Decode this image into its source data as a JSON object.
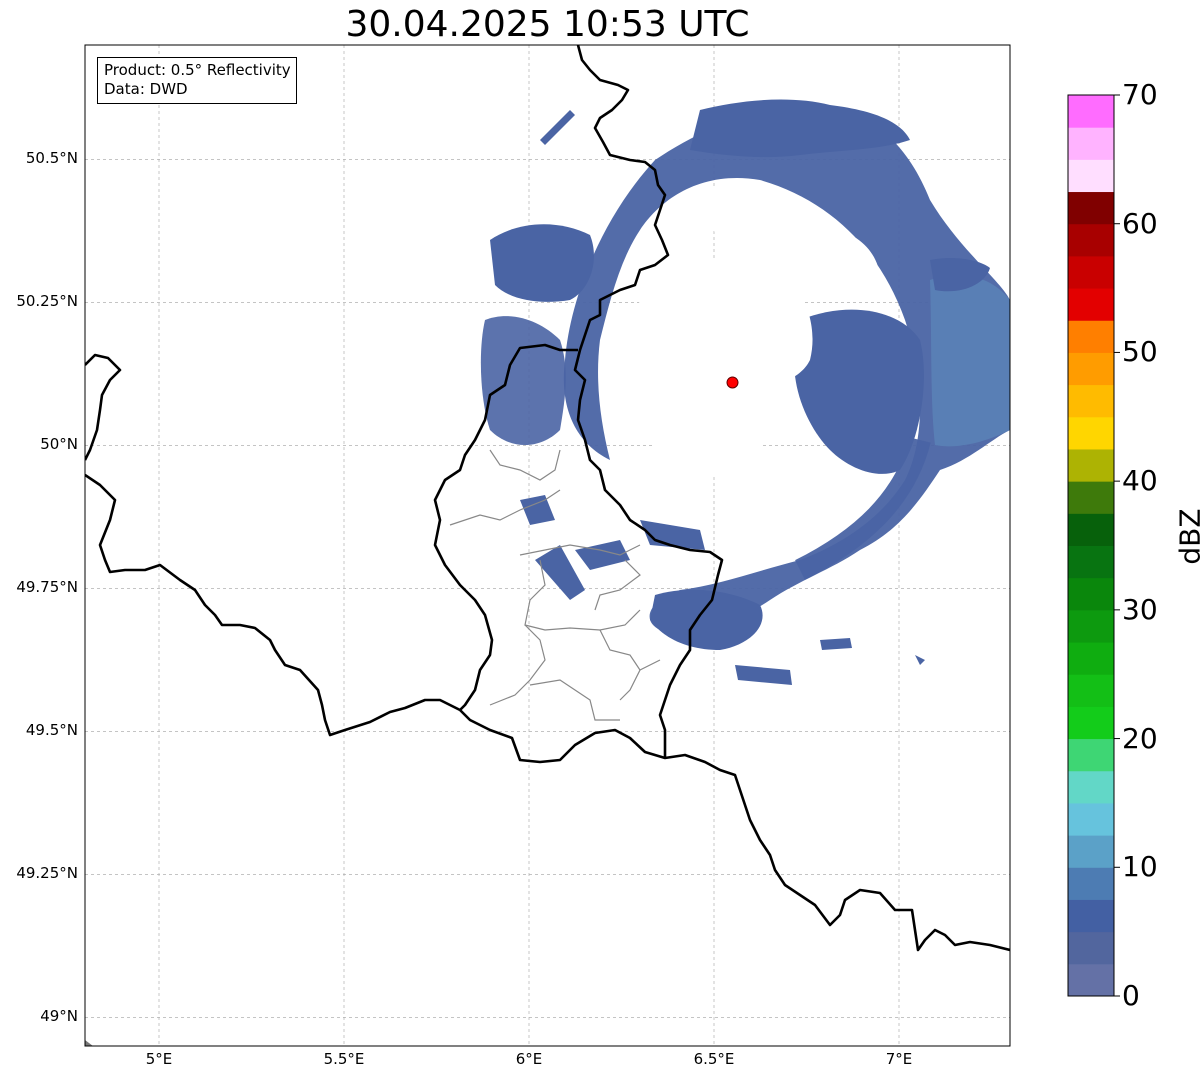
{
  "title": "30.04.2025 10:53 UTC",
  "info_box": {
    "product": "Product: 0.5° Reflectivity",
    "data": "Data: DWD"
  },
  "axes": {
    "lon_ticks": [
      {
        "value": 5.0,
        "label": "5°E"
      },
      {
        "value": 5.5,
        "label": "5.5°E"
      },
      {
        "value": 6.0,
        "label": "6°E"
      },
      {
        "value": 6.5,
        "label": "6.5°E"
      },
      {
        "value": 7.0,
        "label": "7°E"
      }
    ],
    "lat_ticks": [
      {
        "value": 50.5,
        "label": "50.5°N"
      },
      {
        "value": 50.25,
        "label": "50.25°N"
      },
      {
        "value": 50.0,
        "label": "50°N"
      },
      {
        "value": 49.75,
        "label": "49.75°N"
      },
      {
        "value": 49.5,
        "label": "49.5°N"
      },
      {
        "value": 49.25,
        "label": "49.25°N"
      },
      {
        "value": 49.0,
        "label": "49°N"
      }
    ],
    "lon_range": [
      4.8,
      7.3
    ],
    "lat_range": [
      48.95,
      50.7
    ],
    "grid": true
  },
  "radar_site": {
    "lon": 6.55,
    "lat": 50.11,
    "marker_color": "#ff0000"
  },
  "colorbar": {
    "label": "dBZ",
    "min": 0,
    "max": 70,
    "step": 2.5,
    "tick_labels": [
      "0",
      "10",
      "20",
      "30",
      "40",
      "50",
      "60",
      "70"
    ],
    "colors": [
      "#6471a6",
      "#52669e",
      "#4360a3",
      "#4d7cb3",
      "#5ba1c8",
      "#66c3dd",
      "#62d7c7",
      "#3ed674",
      "#13cc1a",
      "#13bf16",
      "#0fad10",
      "#0d9a0f",
      "#0a870c",
      "#087411",
      "#07610b",
      "#3e7a0b",
      "#adb303",
      "#ffd600",
      "#ffbb00",
      "#ff9c00",
      "#ff7f00",
      "#e30000",
      "#c90000",
      "#a80000",
      "#800000",
      "#ffdeff",
      "#ffb3ff",
      "#ff6cff",
      "#ee38ee"
    ]
  },
  "colors": {
    "echo_main": "#4a64a4",
    "echo_light": "#5b85b8",
    "echo_cyan": "#5ba1c8",
    "border": "#000000",
    "admin_border": "#888888",
    "grid": "#b0b0b0"
  }
}
